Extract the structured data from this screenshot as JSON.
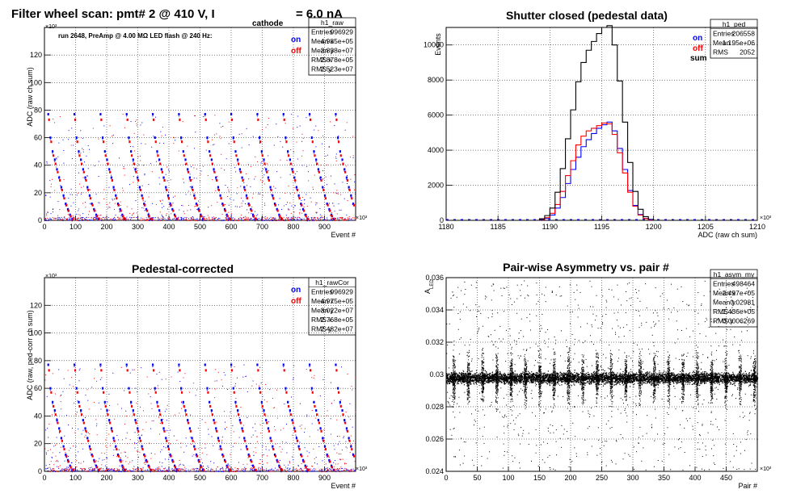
{
  "panels": {
    "raw": {
      "title_main": "Filter wheel scan: pmt#   2 @   410 V, I",
      "title_sub": "cathode",
      "title_tail": "= 6.0 nA",
      "run_info": "run 2648, PreAmp @ 4.00 MΩ  LED flash @  240 Hz:",
      "ylabel": "ADC (raw ch sum)",
      "xlabel": "Event #",
      "y_exp": "×10³",
      "x_exp": "×10³",
      "legend": [
        "on",
        "off"
      ],
      "stats_name": "h1_raw",
      "stats": [
        [
          "Entries",
          "996929"
        ],
        [
          "Mean x",
          "4.985e+05"
        ],
        [
          "Mean y",
          "2.838e+07"
        ],
        [
          "RMS x",
          "2.878e+05"
        ],
        [
          "RMS y",
          "2.523e+07"
        ]
      ]
    },
    "ped": {
      "title": "Shutter closed (pedestal data)",
      "ylabel": "Events",
      "xlabel": "ADC (raw ch sum)",
      "x_exp": "×10³",
      "legend": [
        "on",
        "off",
        "sum"
      ],
      "stats_name": "h1_ped",
      "stats": [
        [
          "Entries",
          "206558"
        ],
        [
          "Mean",
          "1.195e+06"
        ],
        [
          "RMS",
          "2052"
        ]
      ]
    },
    "cor": {
      "title": "Pedestal-corrected",
      "ylabel": "ADC (raw, ped-corr ch sum)",
      "xlabel": "Event #",
      "y_exp": "×10³",
      "x_exp": "×10³",
      "legend": [
        "on",
        "off"
      ],
      "stats_name": "h1_rawCor",
      "stats": [
        [
          "Entries",
          "996929"
        ],
        [
          "Mean x",
          "4.975e+05"
        ],
        [
          "Mean y",
          "3.022e+07"
        ],
        [
          "RMS x",
          "2.768e+05"
        ],
        [
          "RMS y",
          "2.482e+07"
        ]
      ]
    },
    "asym": {
      "title": "Pair-wise Asymmetry vs. pair #",
      "ylabel": "A",
      "ylabel_sub": "LED",
      "xlabel": "Pair #",
      "x_exp": "×10³",
      "stats_name": "h1_asym_my",
      "stats": [
        [
          "Entries",
          "498464"
        ],
        [
          "Mean x",
          "2.497e+05"
        ],
        [
          "Mean y",
          "0.02981"
        ],
        [
          "RMS x",
          "1.436e+05"
        ],
        [
          "RMS y",
          "0.0006269"
        ]
      ]
    }
  },
  "colors": {
    "on": "#0000ff",
    "off": "#ff0000",
    "sum": "#000000",
    "grid": "#000000"
  },
  "chart_data": [
    {
      "type": "scatter",
      "id": "raw",
      "xlabel": "Event #",
      "ylabel": "ADC (raw ch sum)",
      "xlim": [
        0,
        1000
      ],
      "ylim": [
        0,
        140
      ],
      "xticks": [
        0,
        100,
        200,
        300,
        400,
        500,
        600,
        700,
        800,
        900
      ],
      "yticks": [
        0,
        20,
        40,
        60,
        80,
        100,
        120
      ],
      "grid": true,
      "legend": "top-right",
      "series": [
        {
          "name": "on",
          "levels": [
            77,
            60,
            50,
            44,
            37,
            31,
            24,
            18,
            12,
            8,
            4,
            1
          ]
        },
        {
          "name": "off",
          "levels": [
            73,
            57,
            47,
            41,
            35,
            29,
            22,
            16,
            11,
            7,
            3,
            1
          ]
        }
      ]
    },
    {
      "type": "line",
      "id": "ped",
      "xlabel": "ADC (raw ch sum)",
      "ylabel": "Events",
      "xlim": [
        1180,
        1210
      ],
      "ylim": [
        0,
        11000
      ],
      "xticks": [
        1180,
        1185,
        1190,
        1195,
        1200,
        1205,
        1210
      ],
      "yticks": [
        0,
        2000,
        4000,
        6000,
        8000,
        10000
      ],
      "grid": true,
      "legend": "top-right",
      "x": [
        1189.5,
        1190,
        1190.5,
        1191,
        1191.5,
        1192,
        1192.5,
        1193,
        1193.5,
        1194,
        1194.5,
        1195,
        1195.5,
        1196,
        1196.5,
        1197,
        1197.5,
        1198,
        1198.5,
        1199,
        1199.5,
        1200,
        1200.5
      ],
      "series": [
        {
          "name": "on",
          "values": [
            40,
            120,
            300,
            700,
            1300,
            2100,
            2900,
            3600,
            4200,
            4600,
            4950,
            5250,
            5450,
            5600,
            5100,
            4100,
            2900,
            1700,
            850,
            330,
            110,
            30,
            0
          ]
        },
        {
          "name": "off",
          "values": [
            50,
            150,
            400,
            900,
            1650,
            2550,
            3400,
            4300,
            4800,
            5100,
            5250,
            5400,
            5550,
            5500,
            4900,
            3850,
            2700,
            1600,
            800,
            300,
            100,
            25,
            0
          ]
        },
        {
          "name": "sum",
          "values": [
            90,
            270,
            700,
            1600,
            2950,
            4650,
            6300,
            7900,
            9000,
            9700,
            10200,
            10650,
            11000,
            11100,
            10000,
            7950,
            5600,
            3300,
            1650,
            630,
            210,
            55,
            0
          ]
        }
      ]
    },
    {
      "type": "scatter",
      "id": "cor",
      "xlabel": "Event #",
      "ylabel": "ADC (raw, ped-corr ch sum)",
      "xlim": [
        0,
        1000
      ],
      "ylim": [
        0,
        140
      ],
      "xticks": [
        0,
        100,
        200,
        300,
        400,
        500,
        600,
        700,
        800,
        900
      ],
      "yticks": [
        0,
        20,
        40,
        60,
        80,
        100,
        120
      ],
      "grid": true,
      "legend": "top-right",
      "series": [
        {
          "name": "on",
          "levels": [
            77,
            60,
            50,
            44,
            37,
            31,
            24,
            18,
            12,
            8,
            4,
            1
          ]
        },
        {
          "name": "off",
          "levels": [
            73,
            57,
            47,
            41,
            35,
            29,
            22,
            16,
            11,
            7,
            3,
            1
          ]
        }
      ]
    },
    {
      "type": "scatter",
      "id": "asym",
      "xlabel": "Pair #",
      "ylabel": "A LED",
      "xlim": [
        0,
        500
      ],
      "ylim": [
        0.024,
        0.036
      ],
      "xticks": [
        0,
        50,
        100,
        150,
        200,
        250,
        300,
        350,
        400,
        450
      ],
      "yticks": [
        0.024,
        0.026,
        0.028,
        0.03,
        0.032,
        0.034,
        0.036
      ],
      "grid": true,
      "center": 0.0298,
      "band_halfwidth": 0.0007,
      "spike_every": 23
    }
  ]
}
